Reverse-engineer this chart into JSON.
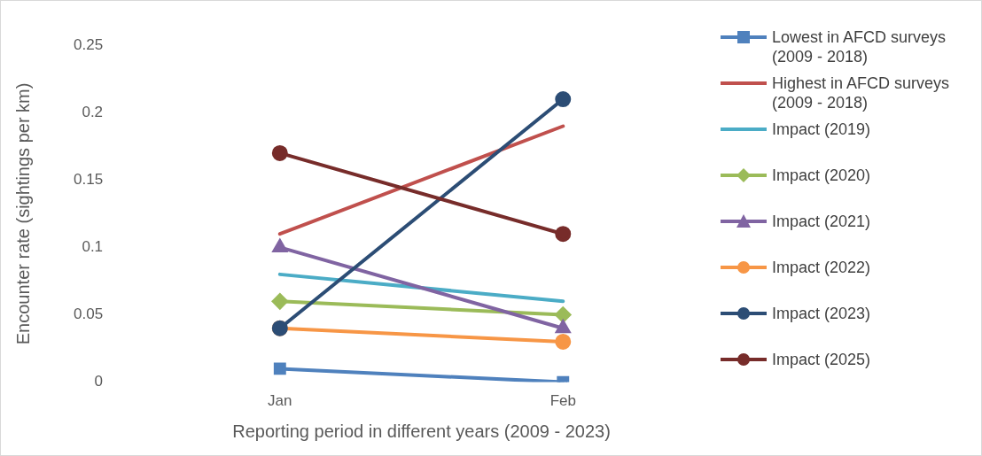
{
  "chart_data": {
    "type": "line",
    "xlabel": "Reporting period in different years (2009 - 2023)",
    "ylabel": "Encounter rate (sightings per km)",
    "categories": [
      "Jan",
      "Feb"
    ],
    "ylim": [
      0,
      0.25
    ],
    "yticks": [
      0,
      0.05,
      0.1,
      0.15,
      0.2,
      0.25
    ],
    "grid": false,
    "legend": "right",
    "line_style": "solid",
    "series": [
      {
        "name": "Lowest in AFCD surveys (2009 - 2018)",
        "color": "#4f81bd",
        "marker": "square",
        "values": [
          0.01,
          0
        ]
      },
      {
        "name": "Highest in AFCD surveys (2009 - 2018)",
        "color": "#c0504d",
        "marker": "none",
        "values": [
          0.11,
          0.19
        ]
      },
      {
        "name": "Impact (2019)",
        "color": "#4bacc6",
        "marker": "none",
        "values": [
          0.08,
          0.06
        ]
      },
      {
        "name": "Impact (2020)",
        "color": "#9bbb59",
        "marker": "diamond",
        "values": [
          0.06,
          0.05
        ]
      },
      {
        "name": "Impact (2021)",
        "color": "#8064a2",
        "marker": "triangle",
        "values": [
          0.1,
          0.04
        ]
      },
      {
        "name": "Impact (2022)",
        "color": "#f79646",
        "marker": "circle",
        "values": [
          0.04,
          0.03
        ]
      },
      {
        "name": "Impact (2023)",
        "color": "#2c4d75",
        "marker": "circle",
        "values": [
          0.04,
          0.21
        ]
      },
      {
        "name": "Impact (2025)",
        "color": "#772c2a",
        "marker": "circle",
        "values": [
          0.17,
          0.11
        ]
      }
    ]
  }
}
